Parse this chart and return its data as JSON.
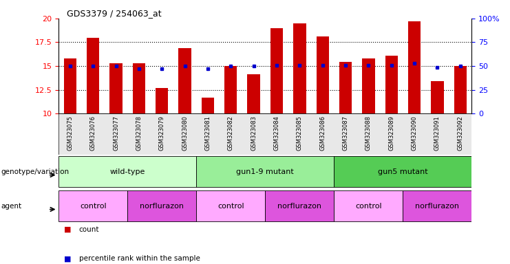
{
  "title": "GDS3379 / 254063_at",
  "samples": [
    "GSM323075",
    "GSM323076",
    "GSM323077",
    "GSM323078",
    "GSM323079",
    "GSM323080",
    "GSM323081",
    "GSM323082",
    "GSM323083",
    "GSM323084",
    "GSM323085",
    "GSM323086",
    "GSM323087",
    "GSM323088",
    "GSM323089",
    "GSM323090",
    "GSM323091",
    "GSM323092"
  ],
  "counts": [
    15.8,
    18.0,
    15.3,
    15.3,
    12.7,
    16.9,
    11.7,
    15.0,
    14.1,
    19.0,
    19.5,
    18.1,
    15.4,
    15.8,
    16.1,
    19.7,
    13.4,
    15.0
  ],
  "percentile_values": [
    15.0,
    15.0,
    15.0,
    14.7,
    14.7,
    15.0,
    14.7,
    15.0,
    15.0,
    15.05,
    15.05,
    15.05,
    15.05,
    15.05,
    15.05,
    15.3,
    14.85,
    15.0
  ],
  "ylim": [
    10,
    20
  ],
  "yticks": [
    10,
    12.5,
    15,
    17.5,
    20
  ],
  "bar_color": "#cc0000",
  "dot_color": "#0000cc",
  "genotype_groups": [
    {
      "label": "wild-type",
      "start": 0,
      "end": 5,
      "color": "#ccffcc"
    },
    {
      "label": "gun1-9 mutant",
      "start": 6,
      "end": 11,
      "color": "#99ee99"
    },
    {
      "label": "gun5 mutant",
      "start": 12,
      "end": 17,
      "color": "#55cc55"
    }
  ],
  "agent_groups": [
    {
      "label": "control",
      "start": 0,
      "end": 2,
      "color": "#ffaaff"
    },
    {
      "label": "norflurazon",
      "start": 3,
      "end": 5,
      "color": "#dd55dd"
    },
    {
      "label": "control",
      "start": 6,
      "end": 8,
      "color": "#ffaaff"
    },
    {
      "label": "norflurazon",
      "start": 9,
      "end": 11,
      "color": "#dd55dd"
    },
    {
      "label": "control",
      "start": 12,
      "end": 14,
      "color": "#ffaaff"
    },
    {
      "label": "norflurazon",
      "start": 15,
      "end": 17,
      "color": "#dd55dd"
    }
  ],
  "legend_count_color": "#cc0000",
  "legend_pct_color": "#0000cc",
  "bg_color": "#ffffff"
}
